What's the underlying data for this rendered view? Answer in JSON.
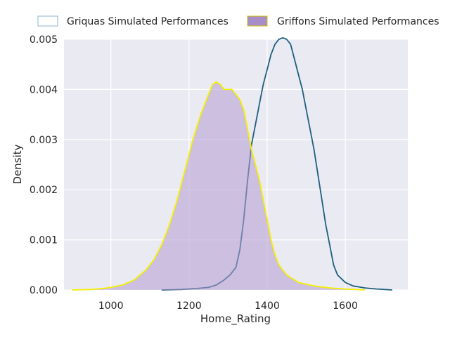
{
  "chart_data": {
    "type": "area",
    "title": "",
    "xlabel": "Home_Rating",
    "ylabel": "Density",
    "xlim": [
      880,
      1760
    ],
    "ylim": [
      0,
      0.005
    ],
    "x_ticks": [
      1000,
      1200,
      1400,
      1600
    ],
    "x_tick_labels": [
      "1000",
      "1200",
      "1400",
      "1600"
    ],
    "y_ticks": [
      0,
      0.001,
      0.002,
      0.003,
      0.004,
      0.005
    ],
    "y_tick_labels": [
      "0.000",
      "0.001",
      "0.002",
      "0.003",
      "0.004",
      "0.005"
    ],
    "grid": true,
    "legend_position": "top",
    "series": [
      {
        "name": "Griquas Simulated Performances",
        "line_color": "#1f5f7f",
        "fill": false,
        "legend_fill": "#ffffff",
        "legend_edge": "#8fb3d0",
        "points": [
          [
            1130,
            0
          ],
          [
            1180,
            1e-05
          ],
          [
            1220,
            3e-05
          ],
          [
            1250,
            5e-05
          ],
          [
            1270,
            0.0001
          ],
          [
            1290,
            0.0002
          ],
          [
            1305,
            0.0003
          ],
          [
            1320,
            0.00045
          ],
          [
            1330,
            0.0008
          ],
          [
            1340,
            0.0014
          ],
          [
            1350,
            0.0022
          ],
          [
            1360,
            0.0029
          ],
          [
            1370,
            0.0033
          ],
          [
            1380,
            0.0037
          ],
          [
            1390,
            0.0041
          ],
          [
            1400,
            0.0044
          ],
          [
            1410,
            0.0047
          ],
          [
            1420,
            0.0049
          ],
          [
            1430,
            0.005
          ],
          [
            1440,
            0.00503
          ],
          [
            1450,
            0.005
          ],
          [
            1460,
            0.0049
          ],
          [
            1470,
            0.0046
          ],
          [
            1480,
            0.0043
          ],
          [
            1490,
            0.004
          ],
          [
            1500,
            0.0036
          ],
          [
            1510,
            0.0032
          ],
          [
            1520,
            0.0028
          ],
          [
            1530,
            0.0023
          ],
          [
            1540,
            0.0018
          ],
          [
            1550,
            0.0013
          ],
          [
            1560,
            0.0009
          ],
          [
            1570,
            0.0005
          ],
          [
            1580,
            0.0003
          ],
          [
            1600,
            0.00015
          ],
          [
            1620,
            8e-05
          ],
          [
            1650,
            4e-05
          ],
          [
            1680,
            2e-05
          ],
          [
            1720,
            0
          ]
        ]
      },
      {
        "name": "Griffons Simulated Performances",
        "line_color": "#f5f000",
        "fill": true,
        "fill_color": "#b39bcf",
        "fill_opacity": 0.55,
        "legend_fill": "#a88ec8",
        "legend_edge": "#d4c400",
        "points": [
          [
            900,
            0
          ],
          [
            950,
            1e-05
          ],
          [
            980,
            3e-05
          ],
          [
            1000,
            5e-05
          ],
          [
            1030,
            0.0001
          ],
          [
            1060,
            0.0002
          ],
          [
            1090,
            0.0004
          ],
          [
            1110,
            0.0006
          ],
          [
            1130,
            0.0009
          ],
          [
            1150,
            0.0013
          ],
          [
            1170,
            0.0018
          ],
          [
            1190,
            0.0024
          ],
          [
            1210,
            0.003
          ],
          [
            1230,
            0.0035
          ],
          [
            1250,
            0.0039
          ],
          [
            1260,
            0.0041
          ],
          [
            1270,
            0.00415
          ],
          [
            1280,
            0.0041
          ],
          [
            1290,
            0.004
          ],
          [
            1300,
            0.004
          ],
          [
            1310,
            0.004
          ],
          [
            1320,
            0.0039
          ],
          [
            1330,
            0.0038
          ],
          [
            1340,
            0.0036
          ],
          [
            1350,
            0.0032
          ],
          [
            1360,
            0.0028
          ],
          [
            1370,
            0.0025
          ],
          [
            1380,
            0.0022
          ],
          [
            1390,
            0.0018
          ],
          [
            1400,
            0.0014
          ],
          [
            1410,
            0.001
          ],
          [
            1420,
            0.0007
          ],
          [
            1430,
            0.0005
          ],
          [
            1450,
            0.0003
          ],
          [
            1480,
            0.00015
          ],
          [
            1520,
            8e-05
          ],
          [
            1560,
            4e-05
          ],
          [
            1600,
            2e-05
          ],
          [
            1650,
            0
          ]
        ]
      }
    ]
  }
}
